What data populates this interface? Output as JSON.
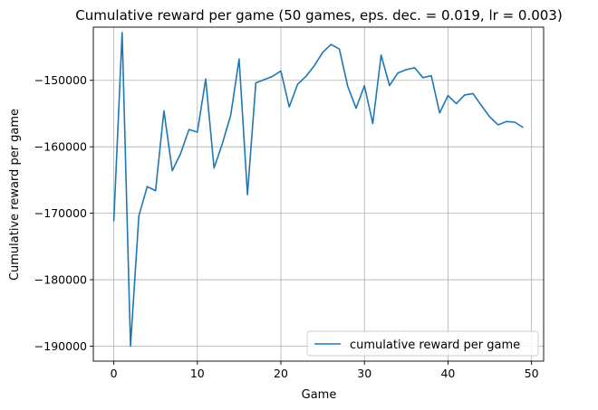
{
  "chart_data": {
    "type": "line",
    "title": "Cumulative reward per game (50 games, eps. dec. = 0.019, lr = 0.003)",
    "xlabel": "Game",
    "ylabel": "Cumulative reward per game",
    "xlim": [
      -2.45,
      51.45
    ],
    "ylim": [
      -192250,
      -142000
    ],
    "xticks": [
      0,
      10,
      20,
      30,
      40,
      50
    ],
    "yticks": [
      -190000,
      -180000,
      -170000,
      -160000,
      -150000
    ],
    "xtick_labels": [
      "0",
      "10",
      "20",
      "30",
      "40",
      "50"
    ],
    "ytick_labels": [
      "−190000",
      "−180000",
      "−170000",
      "−160000",
      "−150000"
    ],
    "grid": true,
    "legend_position": "lower-right",
    "series": [
      {
        "name": "cumulative reward per game",
        "color": "#1f77b4",
        "x": [
          0,
          1,
          2,
          3,
          4,
          5,
          6,
          7,
          8,
          9,
          10,
          11,
          12,
          13,
          14,
          15,
          16,
          17,
          18,
          19,
          20,
          21,
          22,
          23,
          24,
          25,
          26,
          27,
          28,
          29,
          30,
          31,
          32,
          33,
          34,
          35,
          36,
          37,
          38,
          39,
          40,
          41,
          42,
          43,
          44,
          45,
          46,
          47,
          48,
          49
        ],
        "y": [
          -171200,
          -142800,
          -190000,
          -170400,
          -166000,
          -166600,
          -154600,
          -163600,
          -161000,
          -157400,
          -157800,
          -149800,
          -163200,
          -159500,
          -155200,
          -146800,
          -167200,
          -150400,
          -149900,
          -149400,
          -148600,
          -154000,
          -150600,
          -149400,
          -147800,
          -145800,
          -144600,
          -145300,
          -150900,
          -154200,
          -150800,
          -156500,
          -146200,
          -150800,
          -148900,
          -148400,
          -148100,
          -149600,
          -149300,
          -154900,
          -152300,
          -153500,
          -152200,
          -152000,
          -153800,
          -155500,
          -156700,
          -156200,
          -156300,
          -157100
        ]
      }
    ]
  }
}
